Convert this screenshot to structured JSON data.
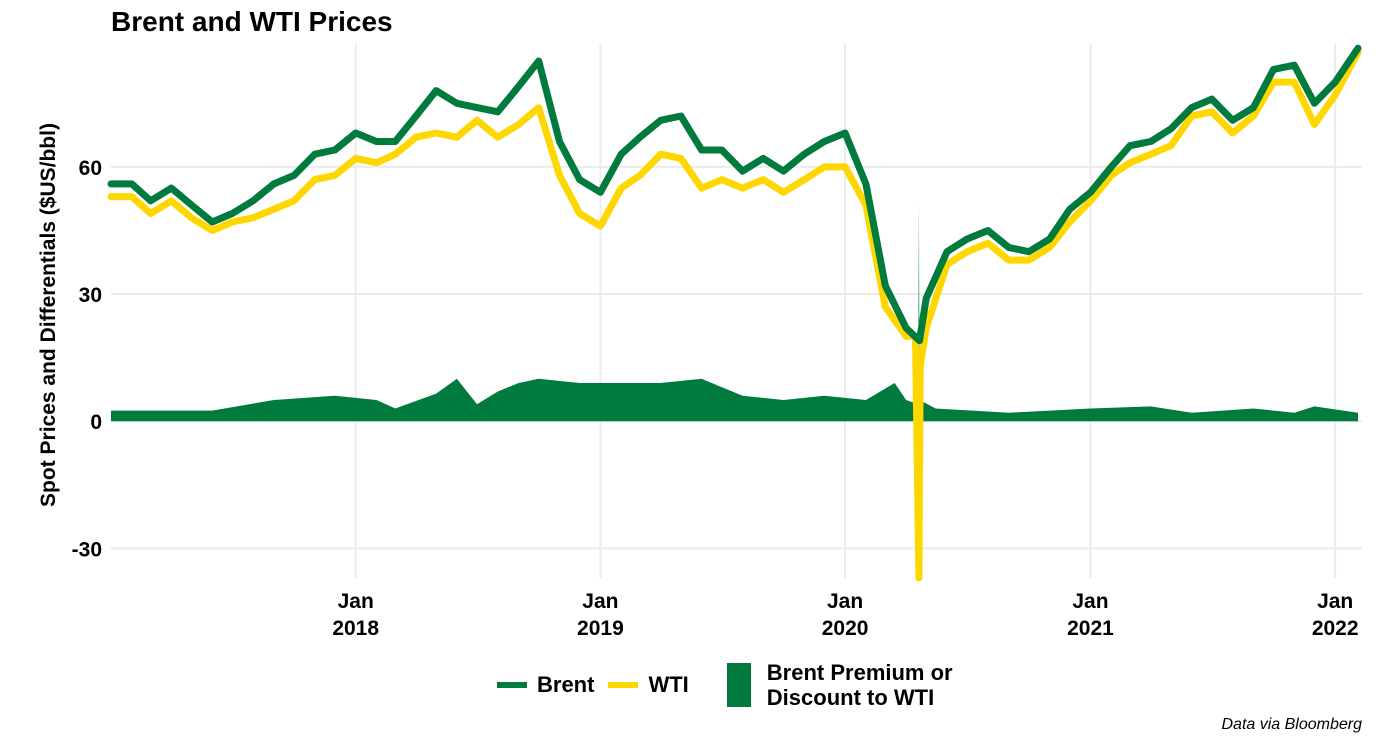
{
  "colors": {
    "brent": "#007A3D",
    "wti": "#FFD700",
    "spread": "#007A3D",
    "grid": "#EBEBEB"
  },
  "caption": "Data via Bloomberg",
  "legend": {
    "items": [
      {
        "label": "Brent",
        "kind": "line",
        "color": "#007A3D"
      },
      {
        "label": "WTI",
        "kind": "line",
        "color": "#FFD700"
      }
    ],
    "spread_label": "Brent Premium or Discount to WTI"
  },
  "chart_data": {
    "type": "line",
    "title": "Brent and WTI Prices",
    "xlabel": "",
    "ylabel": "Spot Prices and Differentials ($US/bbl)",
    "x_domain": [
      "2017-01-01",
      "2022-02-10"
    ],
    "ylim": [
      -37,
      89
    ],
    "y_ticks": [
      -30,
      0,
      30,
      60
    ],
    "x_ticks": [
      {
        "date": "2018-01-01",
        "label": [
          "Jan",
          "2018"
        ]
      },
      {
        "date": "2019-01-01",
        "label": [
          "Jan",
          "2019"
        ]
      },
      {
        "date": "2020-01-01",
        "label": [
          "Jan",
          "2020"
        ]
      },
      {
        "date": "2021-01-01",
        "label": [
          "Jan",
          "2021"
        ]
      },
      {
        "date": "2022-01-01",
        "label": [
          "Jan",
          "2022"
        ]
      }
    ],
    "grid": true,
    "legend_position": "bottom",
    "series": [
      {
        "name": "Brent",
        "kind": "line",
        "points": [
          [
            "2017-01-01",
            56
          ],
          [
            "2017-02-01",
            56
          ],
          [
            "2017-03-01",
            52
          ],
          [
            "2017-04-01",
            55
          ],
          [
            "2017-05-01",
            51
          ],
          [
            "2017-06-01",
            47
          ],
          [
            "2017-07-01",
            49
          ],
          [
            "2017-08-01",
            52
          ],
          [
            "2017-09-01",
            56
          ],
          [
            "2017-10-01",
            58
          ],
          [
            "2017-11-01",
            63
          ],
          [
            "2017-12-01",
            64
          ],
          [
            "2018-01-01",
            68
          ],
          [
            "2018-02-01",
            66
          ],
          [
            "2018-03-01",
            66
          ],
          [
            "2018-04-01",
            72
          ],
          [
            "2018-05-01",
            78
          ],
          [
            "2018-06-01",
            75
          ],
          [
            "2018-07-01",
            74
          ],
          [
            "2018-08-01",
            73
          ],
          [
            "2018-09-01",
            79
          ],
          [
            "2018-10-01",
            85
          ],
          [
            "2018-11-01",
            66
          ],
          [
            "2018-12-01",
            57
          ],
          [
            "2019-01-01",
            54
          ],
          [
            "2019-02-01",
            63
          ],
          [
            "2019-03-01",
            67
          ],
          [
            "2019-04-01",
            71
          ],
          [
            "2019-05-01",
            72
          ],
          [
            "2019-06-01",
            64
          ],
          [
            "2019-07-01",
            64
          ],
          [
            "2019-08-01",
            59
          ],
          [
            "2019-09-01",
            62
          ],
          [
            "2019-10-01",
            59
          ],
          [
            "2019-11-01",
            63
          ],
          [
            "2019-12-01",
            66
          ],
          [
            "2020-01-01",
            68
          ],
          [
            "2020-02-01",
            56
          ],
          [
            "2020-03-01",
            32
          ],
          [
            "2020-04-01",
            22
          ],
          [
            "2020-04-21",
            19
          ],
          [
            "2020-05-01",
            29
          ],
          [
            "2020-06-01",
            40
          ],
          [
            "2020-07-01",
            43
          ],
          [
            "2020-08-01",
            45
          ],
          [
            "2020-09-01",
            41
          ],
          [
            "2020-10-01",
            40
          ],
          [
            "2020-11-01",
            43
          ],
          [
            "2020-12-01",
            50
          ],
          [
            "2021-01-01",
            54
          ],
          [
            "2021-02-01",
            60
          ],
          [
            "2021-03-01",
            65
          ],
          [
            "2021-04-01",
            66
          ],
          [
            "2021-05-01",
            69
          ],
          [
            "2021-06-01",
            74
          ],
          [
            "2021-07-01",
            76
          ],
          [
            "2021-08-01",
            71
          ],
          [
            "2021-09-01",
            74
          ],
          [
            "2021-10-01",
            83
          ],
          [
            "2021-11-01",
            84
          ],
          [
            "2021-12-01",
            75
          ],
          [
            "2022-01-01",
            80
          ],
          [
            "2022-02-04",
            88
          ]
        ]
      },
      {
        "name": "WTI",
        "kind": "line",
        "points": [
          [
            "2017-01-01",
            53
          ],
          [
            "2017-02-01",
            53
          ],
          [
            "2017-03-01",
            49
          ],
          [
            "2017-04-01",
            52
          ],
          [
            "2017-05-01",
            48
          ],
          [
            "2017-06-01",
            45
          ],
          [
            "2017-07-01",
            47
          ],
          [
            "2017-08-01",
            48
          ],
          [
            "2017-09-01",
            50
          ],
          [
            "2017-10-01",
            52
          ],
          [
            "2017-11-01",
            57
          ],
          [
            "2017-12-01",
            58
          ],
          [
            "2018-01-01",
            62
          ],
          [
            "2018-02-01",
            61
          ],
          [
            "2018-03-01",
            63
          ],
          [
            "2018-04-01",
            67
          ],
          [
            "2018-05-01",
            68
          ],
          [
            "2018-06-01",
            67
          ],
          [
            "2018-07-01",
            71
          ],
          [
            "2018-08-01",
            67
          ],
          [
            "2018-09-01",
            70
          ],
          [
            "2018-10-01",
            74
          ],
          [
            "2018-11-01",
            58
          ],
          [
            "2018-12-01",
            49
          ],
          [
            "2019-01-01",
            46
          ],
          [
            "2019-02-01",
            55
          ],
          [
            "2019-03-01",
            58
          ],
          [
            "2019-04-01",
            63
          ],
          [
            "2019-05-01",
            62
          ],
          [
            "2019-06-01",
            55
          ],
          [
            "2019-07-01",
            57
          ],
          [
            "2019-08-01",
            55
          ],
          [
            "2019-09-01",
            57
          ],
          [
            "2019-10-01",
            54
          ],
          [
            "2019-11-01",
            57
          ],
          [
            "2019-12-01",
            60
          ],
          [
            "2020-01-01",
            60
          ],
          [
            "2020-02-01",
            51
          ],
          [
            "2020-03-01",
            27
          ],
          [
            "2020-04-01",
            20
          ],
          [
            "2020-04-15",
            20
          ],
          [
            "2020-04-20",
            -37
          ],
          [
            "2020-04-22",
            13
          ],
          [
            "2020-05-01",
            22
          ],
          [
            "2020-06-01",
            37
          ],
          [
            "2020-07-01",
            40
          ],
          [
            "2020-08-01",
            42
          ],
          [
            "2020-09-01",
            38
          ],
          [
            "2020-10-01",
            38
          ],
          [
            "2020-11-01",
            41
          ],
          [
            "2020-12-01",
            47
          ],
          [
            "2021-01-01",
            52
          ],
          [
            "2021-02-01",
            58
          ],
          [
            "2021-03-01",
            61
          ],
          [
            "2021-04-01",
            63
          ],
          [
            "2021-05-01",
            65
          ],
          [
            "2021-06-01",
            72
          ],
          [
            "2021-07-01",
            73
          ],
          [
            "2021-08-01",
            68
          ],
          [
            "2021-09-01",
            72
          ],
          [
            "2021-10-01",
            80
          ],
          [
            "2021-11-01",
            80
          ],
          [
            "2021-12-01",
            70
          ],
          [
            "2022-01-01",
            77
          ],
          [
            "2022-02-04",
            87
          ]
        ]
      },
      {
        "name": "Brent Premium or Discount to WTI",
        "kind": "area",
        "points": [
          [
            "2017-01-01",
            2.5
          ],
          [
            "2017-06-01",
            2.5
          ],
          [
            "2017-09-01",
            5
          ],
          [
            "2017-12-01",
            6
          ],
          [
            "2018-02-01",
            5
          ],
          [
            "2018-03-01",
            3
          ],
          [
            "2018-05-01",
            6.5
          ],
          [
            "2018-06-01",
            10
          ],
          [
            "2018-07-01",
            4
          ],
          [
            "2018-08-01",
            7
          ],
          [
            "2018-09-01",
            9
          ],
          [
            "2018-10-01",
            10
          ],
          [
            "2018-12-01",
            9
          ],
          [
            "2019-02-01",
            9
          ],
          [
            "2019-04-01",
            9
          ],
          [
            "2019-06-01",
            10
          ],
          [
            "2019-08-01",
            6
          ],
          [
            "2019-10-01",
            5
          ],
          [
            "2019-12-01",
            6
          ],
          [
            "2020-02-01",
            5
          ],
          [
            "2020-03-15",
            9
          ],
          [
            "2020-04-01",
            5
          ],
          [
            "2020-04-19",
            4
          ],
          [
            "2020-04-20",
            52
          ],
          [
            "2020-04-21",
            5
          ],
          [
            "2020-05-15",
            3
          ],
          [
            "2020-09-01",
            2
          ],
          [
            "2021-01-01",
            3
          ],
          [
            "2021-04-01",
            3.5
          ],
          [
            "2021-06-01",
            2
          ],
          [
            "2021-09-01",
            3
          ],
          [
            "2021-11-01",
            2
          ],
          [
            "2021-12-01",
            3.5
          ],
          [
            "2022-02-04",
            2
          ]
        ]
      }
    ]
  }
}
